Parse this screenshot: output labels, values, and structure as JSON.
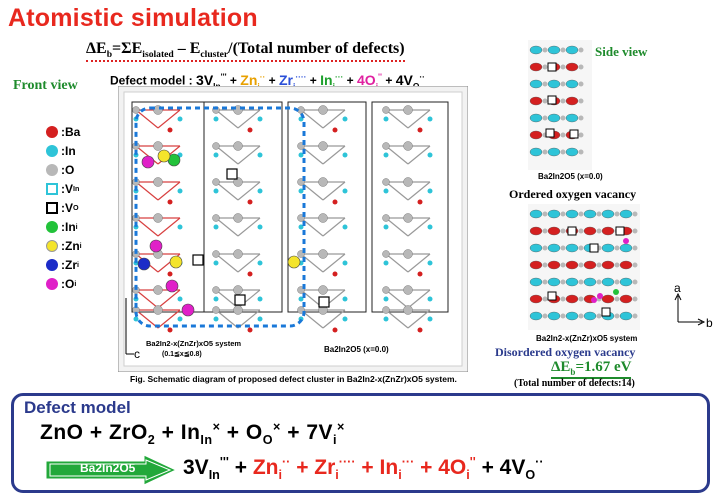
{
  "title": "Atomistic simulation",
  "equation": {
    "lhs_symbol": "ΔE",
    "lhs_sub": "b",
    "eq1": "=ΣE",
    "sub1": "isolated",
    "minus": " – E",
    "sub2": "cluster",
    "rest": "/(Total number of defects)"
  },
  "front_view": "Front view",
  "defect_model_line": {
    "label": "Defect model :",
    "t1": "3V",
    "t1_sub": "In",
    "t1_sup": "'''",
    "t2": "Zn",
    "t2_sub": "i",
    "t2_sup": "··",
    "t3": "Zr",
    "t3_sub": "i",
    "t3_sup": "····",
    "t4": "In",
    "t4_sub": "i",
    "t4_sup": "···",
    "t5": "4O",
    "t5_sub": "i",
    "t5_sup": "''",
    "t6": "4V",
    "t6_sub": "O",
    "t6_sup": "··",
    "plus": " + "
  },
  "legend": [
    {
      "label": ":Ba",
      "color": "#d42020",
      "shape": "dot"
    },
    {
      "label": ":In",
      "color": "#2ec4d8",
      "shape": "dot"
    },
    {
      "label": ":O",
      "color": "#b8b8b8",
      "shape": "dot"
    },
    {
      "label": ":V",
      "sub": "In",
      "color": "#2ec4d8",
      "shape": "square"
    },
    {
      "label": ":V",
      "sub": "O",
      "color": "#000000",
      "shape": "square"
    },
    {
      "label": ":In",
      "sub": "i",
      "color": "#22c23a",
      "shape": "dot"
    },
    {
      "label": ":Zn",
      "sub": "i",
      "color": "#f4e42c",
      "shape": "dot"
    },
    {
      "label": ":Zr",
      "sub": "i",
      "color": "#1c2cc8",
      "shape": "dot"
    },
    {
      "label": ":O",
      "sub": "i",
      "color": "#e020c8",
      "shape": "dot"
    }
  ],
  "structure_labels": {
    "left_cell": "Ba2In2-x(ZnZr)xO5 system",
    "left_range": "(0.1≦x≦0.8)",
    "right_cell": "Ba2In2O5 (x=0.0)",
    "axis_a": "a",
    "axis_c": "c"
  },
  "caption": "Fig. Schematic diagram of proposed defect cluster in Ba2In2-x(ZnZr)xO5 system.",
  "side_view": "Side view",
  "side_top_label": "Ba2In2O5 (x=0.0)",
  "ordered_label": "Ordered oxygen vacancy",
  "side_bottom_label": "Ba2In2-x(ZnZr)xO5 system",
  "side_axis": {
    "a": "a",
    "b": "b"
  },
  "disordered_label": "Disordered oxygen vacancy",
  "eb_value": {
    "sym": "ΔE",
    "sub": "b",
    "val": "=1.67 eV"
  },
  "total_defects": "(Total number of defects:14)",
  "model": {
    "title": "Defect model",
    "reactants": {
      "r1": "ZnO",
      "r2": "ZrO",
      "r2_sub": "2",
      "r3": "In",
      "r3_sub": "In",
      "r3_sup": "×",
      "r4": "O",
      "r4_sub": "O",
      "r4_sup": "×",
      "r5": "7V",
      "r5_sub": "i",
      "r5_sup": "×",
      "plus": " + "
    },
    "arrow_label": "Ba2In2O5",
    "products": {
      "p1": "3V",
      "p1_sub": "In",
      "p1_sup": "'''",
      "p2": "Zn",
      "p2_sub": "i",
      "p2_sup": "··",
      "p3": "Zr",
      "p3_sub": "i",
      "p3_sup": "····",
      "p4": "In",
      "p4_sub": "i",
      "p4_sup": "···",
      "p5": "4O",
      "p5_sub": "i",
      "p5_sup": "''",
      "p6": "4V",
      "p6_sub": "O",
      "p6_sup": "··",
      "plus": " + "
    }
  }
}
